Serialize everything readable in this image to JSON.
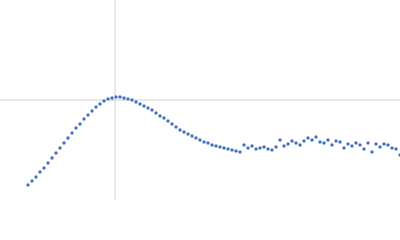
{
  "chart_data": {
    "type": "scatter",
    "color": "#3f6fc6",
    "xlim": [
      0,
      400
    ],
    "ylim": [
      0,
      200
    ],
    "x": [
      28,
      32,
      36,
      40,
      44,
      48,
      52,
      56,
      60,
      64,
      68,
      72,
      76,
      80,
      84,
      88,
      92,
      96,
      100,
      104,
      108,
      112,
      116,
      120,
      124,
      128,
      132,
      136,
      140,
      144,
      148,
      152,
      156,
      160,
      164,
      168,
      172,
      176,
      180,
      184,
      188,
      192,
      196,
      200,
      204,
      208,
      212,
      216,
      220,
      224,
      228,
      232,
      236,
      240,
      244,
      248,
      252,
      256,
      260,
      264,
      268,
      272,
      276,
      280,
      284,
      288,
      292,
      296,
      300,
      304,
      308,
      312,
      316,
      320,
      324,
      328,
      332,
      336,
      340,
      344,
      348,
      352,
      356,
      360,
      364,
      368,
      372,
      376,
      380,
      384,
      388,
      392,
      396,
      400
    ],
    "values": [
      15,
      19,
      23,
      28,
      32,
      37,
      42,
      47,
      52,
      57,
      62,
      67,
      72,
      76,
      81,
      85,
      89,
      93,
      96,
      99,
      101,
      102,
      103,
      103,
      102,
      101,
      100,
      98,
      96,
      94,
      92,
      90,
      87,
      84,
      82,
      79,
      76,
      73,
      70,
      68,
      66,
      64,
      62,
      60,
      58,
      57,
      55,
      54,
      53,
      52,
      51,
      50,
      49,
      48,
      55,
      52,
      54,
      51,
      52,
      53,
      51,
      50,
      53,
      60,
      54,
      56,
      59,
      57,
      55,
      59,
      62,
      60,
      63,
      58,
      57,
      60,
      55,
      59,
      58,
      52,
      56,
      54,
      57,
      55,
      51,
      57,
      48,
      56,
      53,
      56,
      55,
      52,
      51,
      45
    ]
  }
}
